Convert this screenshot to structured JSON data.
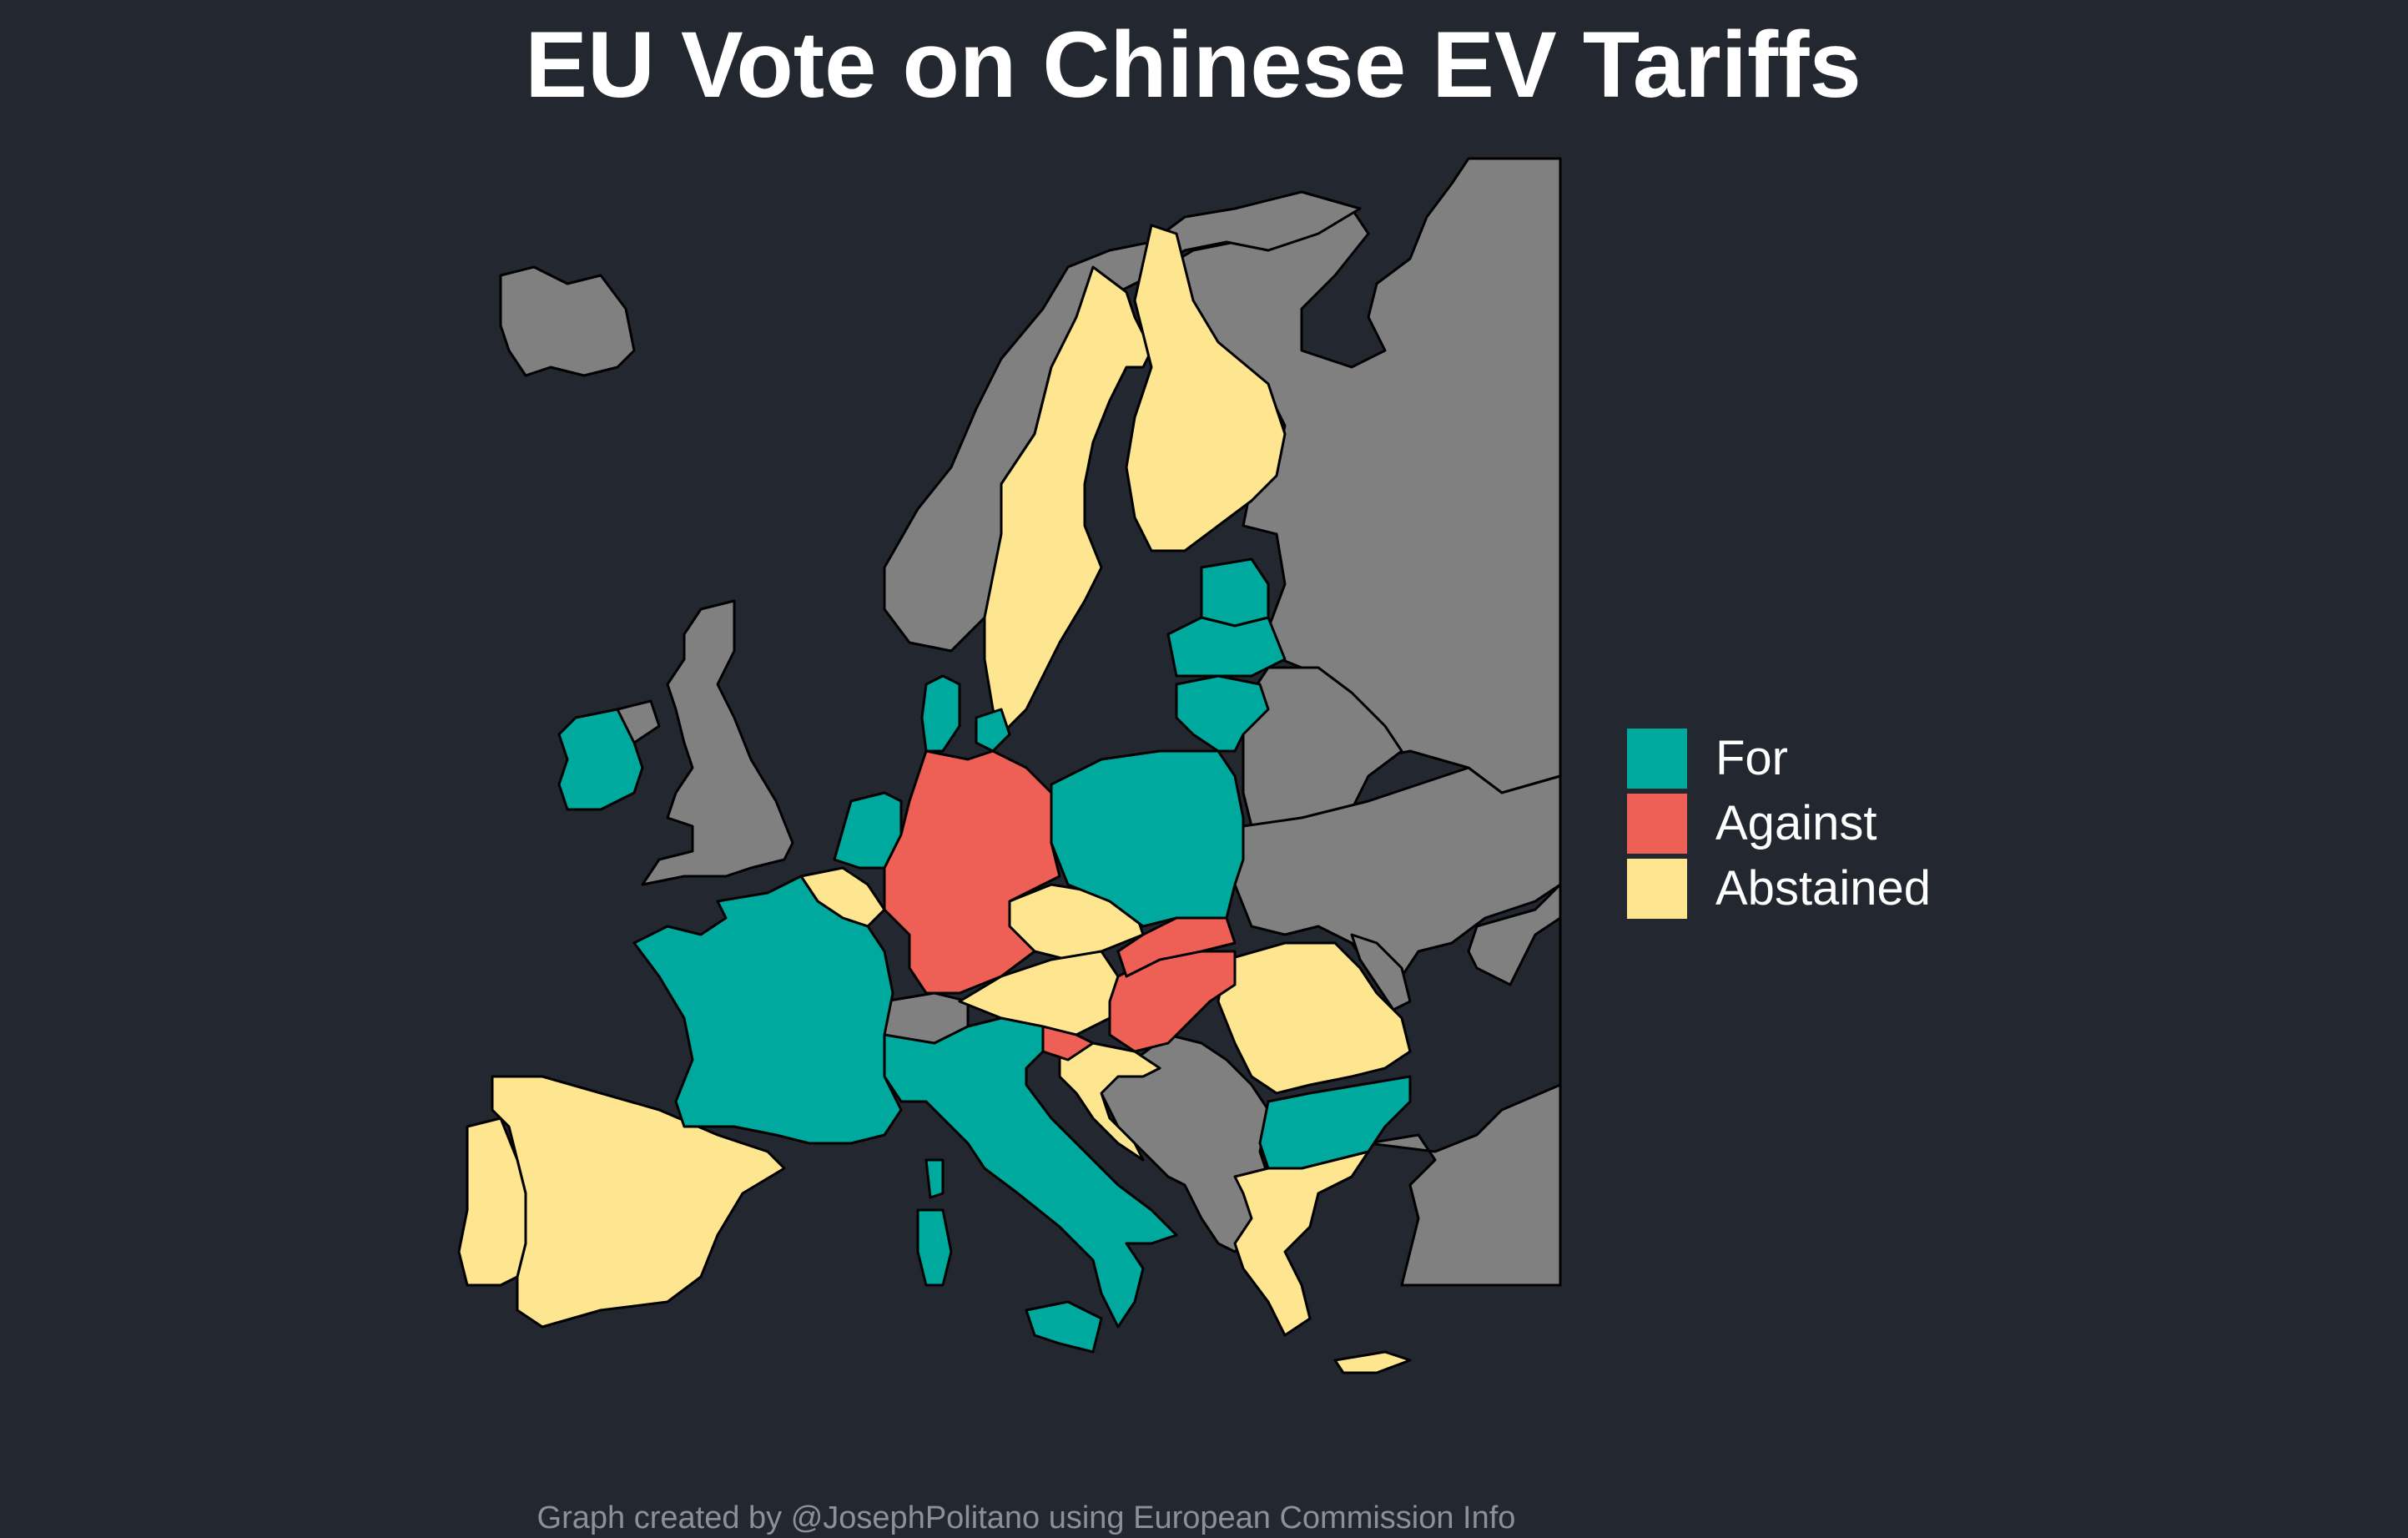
{
  "title": "EU Vote on Chinese EV Tariffs",
  "caption": "Graph created by @JosephPolitano using European Commission Info",
  "colors": {
    "background": "#232730",
    "for": "#00A99D",
    "against": "#EE6055",
    "abstained": "#FDE68F",
    "non_eu": "#808080"
  },
  "legend": [
    {
      "key": "for",
      "label": "For"
    },
    {
      "key": "against",
      "label": "Against"
    },
    {
      "key": "abstained",
      "label": "Abstained"
    }
  ],
  "votes": {
    "for": [
      "France",
      "Italy",
      "Netherlands",
      "Poland",
      "Ireland",
      "Denmark",
      "Lithuania",
      "Latvia",
      "Estonia",
      "Bulgaria"
    ],
    "against": [
      "Germany",
      "Hungary",
      "Slovakia",
      "Slovenia"
    ],
    "abstained": [
      "Spain",
      "Portugal",
      "Sweden",
      "Finland",
      "Belgium",
      "Czechia",
      "Austria",
      "Romania",
      "Greece",
      "Croatia",
      "Cyprus",
      "Luxembourg"
    ],
    "non_eu": [
      "United Kingdom",
      "Norway",
      "Iceland",
      "Switzerland",
      "Serbia",
      "Bosnia and Herzegovina",
      "Albania",
      "North Macedonia",
      "Montenegro",
      "Belarus",
      "Ukraine",
      "Moldova",
      "Russia",
      "Turkey"
    ]
  }
}
